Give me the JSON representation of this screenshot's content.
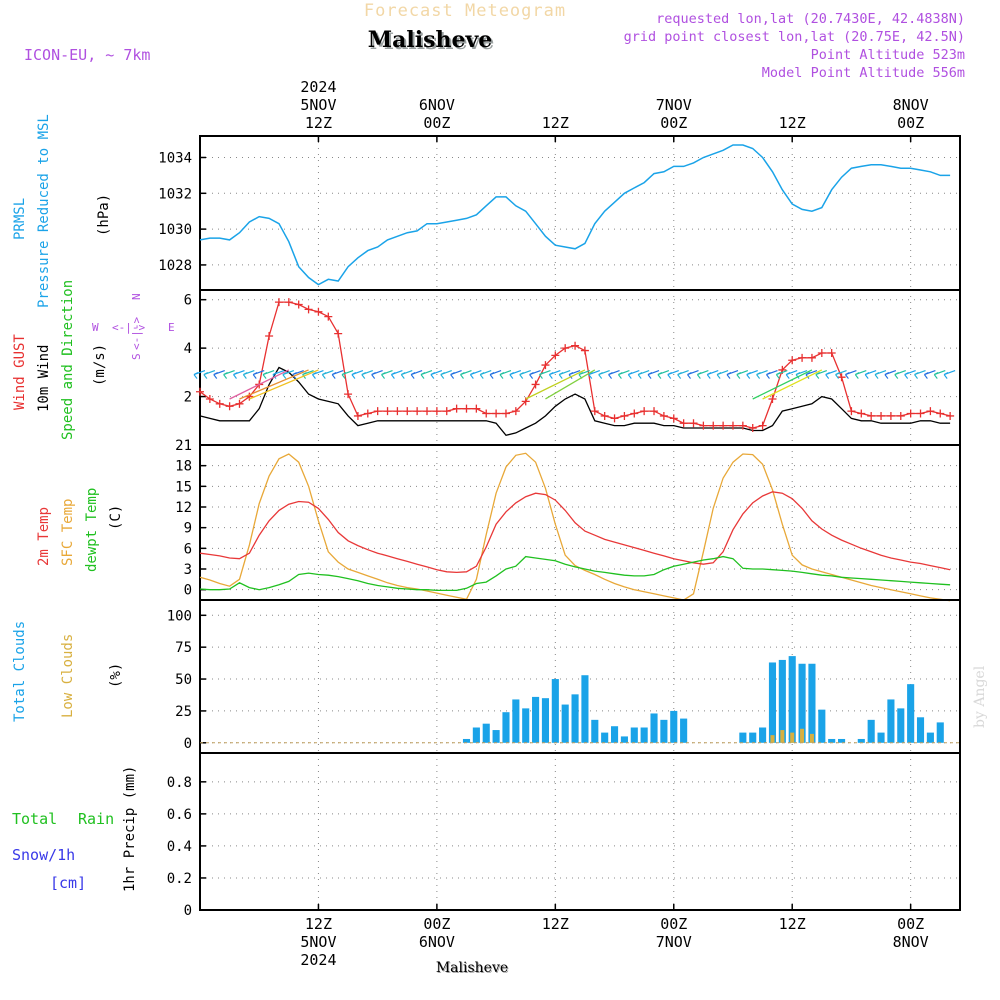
{
  "header": {
    "product": "Forecast Meteogram",
    "location": "Malisheve",
    "model": "ICON-EU, ~ 7km",
    "requested": "requested lon,lat (20.7430E, 42.4838N)",
    "gridpoint": "grid point closest lon,lat (20.75E, 42.5N)",
    "point_alt": "Point Altitude 523m",
    "model_alt": "Model Point Altitude 556m",
    "watermark": "by Angel",
    "footer": "Malisheve"
  },
  "colors": {
    "pressure": "#1aa3e8",
    "gust": "#e83030",
    "wind": "#000000",
    "temp": "#e83838",
    "sfc": "#e8a838",
    "dew": "#20c020",
    "clouds": "#1aa3e8",
    "low": "#d8b040",
    "rain": "#20c020",
    "snow": "#3838e8",
    "purple": "#b050e0"
  },
  "time_axis": {
    "top": [
      {
        "h": 12,
        "l1": "2024",
        "l2": "5NOV",
        "l3": "12Z"
      },
      {
        "h": 24,
        "l1": "",
        "l2": "6NOV",
        "l3": "00Z"
      },
      {
        "h": 36,
        "l1": "",
        "l2": "",
        "l3": "12Z"
      },
      {
        "h": 48,
        "l1": "",
        "l2": "7NOV",
        "l3": "00Z"
      },
      {
        "h": 60,
        "l1": "",
        "l2": "",
        "l3": "12Z"
      },
      {
        "h": 72,
        "l1": "",
        "l2": "8NOV",
        "l3": "00Z"
      }
    ],
    "bottom": [
      {
        "h": 12,
        "l1": "12Z",
        "l2": "5NOV",
        "l3": "2024"
      },
      {
        "h": 24,
        "l1": "00Z",
        "l2": "6NOV",
        "l3": ""
      },
      {
        "h": 36,
        "l1": "12Z",
        "l2": "",
        "l3": ""
      },
      {
        "h": 48,
        "l1": "00Z",
        "l2": "7NOV",
        "l3": ""
      },
      {
        "h": 60,
        "l1": "12Z",
        "l2": "",
        "l3": ""
      },
      {
        "h": 72,
        "l1": "00Z",
        "l2": "8NOV",
        "l3": ""
      }
    ]
  },
  "panel_labels": {
    "p1": {
      "a": "PRMSL",
      "b": "Pressure Reduced to MSL",
      "unit": "(hPa)"
    },
    "p2": {
      "a": "Wind GUST",
      "b": "10m Wind",
      "c": "Speed and Direction",
      "unit": "(m/s)",
      "n": "N",
      "s": "S",
      "w": "W",
      "e": "E",
      "arrows": "<-|->"
    },
    "p3": {
      "a": "2m Temp",
      "b": "SFC Temp",
      "c": "dewpt Temp",
      "unit": "(C)"
    },
    "p4": {
      "a": "Total Clouds",
      "b": "Low Clouds",
      "unit": "(%)"
    },
    "p5": {
      "a": "Total",
      "b": "Rain",
      "c": "Snow/1h",
      "d": "[cm]",
      "unit": "1hr Precip (mm)"
    }
  },
  "chart_data": [
    {
      "type": "line",
      "title": "Pressure Reduced to MSL",
      "ylabel": "(hPa)",
      "ylim": [
        1026.6,
        1035.2
      ],
      "yticks": [
        1028,
        1030,
        1032,
        1034
      ],
      "xlim": [
        0,
        77
      ],
      "x": [
        0,
        1,
        2,
        3,
        4,
        5,
        6,
        7,
        8,
        9,
        10,
        11,
        12,
        13,
        14,
        15,
        16,
        17,
        18,
        19,
        20,
        21,
        22,
        23,
        24,
        25,
        26,
        27,
        28,
        29,
        30,
        31,
        32,
        33,
        34,
        35,
        36,
        37,
        38,
        39,
        40,
        41,
        42,
        43,
        44,
        45,
        46,
        47,
        48,
        49,
        50,
        51,
        52,
        53,
        54,
        55,
        56,
        57,
        58,
        59,
        60,
        61,
        62,
        63,
        64,
        65,
        66,
        67,
        68,
        69,
        70,
        71,
        72,
        73,
        74,
        75,
        76
      ],
      "series": [
        {
          "name": "PRMSL",
          "values": [
            1029.4,
            1029.5,
            1029.5,
            1029.4,
            1029.8,
            1030.4,
            1030.7,
            1030.6,
            1030.3,
            1029.3,
            1027.9,
            1027.3,
            1026.9,
            1027.2,
            1027.1,
            1027.9,
            1028.4,
            1028.8,
            1029.0,
            1029.4,
            1029.6,
            1029.8,
            1029.9,
            1030.3,
            1030.3,
            1030.4,
            1030.5,
            1030.6,
            1030.8,
            1031.3,
            1031.8,
            1031.8,
            1031.3,
            1031.0,
            1030.3,
            1029.6,
            1029.1,
            1029.0,
            1028.9,
            1029.2,
            1030.3,
            1031.0,
            1031.5,
            1032.0,
            1032.3,
            1032.6,
            1033.1,
            1033.2,
            1033.5,
            1033.5,
            1033.7,
            1034.0,
            1034.2,
            1034.4,
            1034.7,
            1034.7,
            1034.5,
            1034.0,
            1033.2,
            1032.2,
            1031.4,
            1031.1,
            1031.0,
            1031.2,
            1032.2,
            1032.9,
            1033.4,
            1033.5,
            1033.6,
            1033.6,
            1033.5,
            1033.4,
            1033.4,
            1033.3,
            1033.2,
            1033.0,
            1033.0
          ]
        }
      ]
    },
    {
      "type": "line",
      "title": "Wind GUST / 10m Wind",
      "ylabel": "(m/s)",
      "ylim": [
        0,
        6.4
      ],
      "yticks": [
        2,
        4,
        6
      ],
      "xlim": [
        0,
        77
      ],
      "x": [
        0,
        1,
        2,
        3,
        4,
        5,
        6,
        7,
        8,
        9,
        10,
        11,
        12,
        13,
        14,
        15,
        16,
        17,
        18,
        19,
        20,
        21,
        22,
        23,
        24,
        25,
        26,
        27,
        28,
        29,
        30,
        31,
        32,
        33,
        34,
        35,
        36,
        37,
        38,
        39,
        40,
        41,
        42,
        43,
        44,
        45,
        46,
        47,
        48,
        49,
        50,
        51,
        52,
        53,
        54,
        55,
        56,
        57,
        58,
        59,
        60,
        61,
        62,
        63,
        64,
        65,
        66,
        67,
        68,
        69,
        70,
        71,
        72,
        73,
        74,
        75,
        76
      ],
      "series": [
        {
          "name": "Wind GUST",
          "values": [
            2.2,
            1.9,
            1.7,
            1.6,
            1.7,
            2.0,
            2.5,
            4.5,
            5.9,
            5.9,
            5.8,
            5.6,
            5.5,
            5.3,
            4.6,
            2.1,
            1.2,
            1.3,
            1.4,
            1.4,
            1.4,
            1.4,
            1.4,
            1.4,
            1.4,
            1.4,
            1.5,
            1.5,
            1.5,
            1.3,
            1.3,
            1.3,
            1.4,
            1.8,
            2.5,
            3.3,
            3.7,
            4.0,
            4.1,
            3.9,
            1.4,
            1.2,
            1.1,
            1.2,
            1.3,
            1.4,
            1.4,
            1.2,
            1.1,
            0.9,
            0.9,
            0.8,
            0.8,
            0.8,
            0.8,
            0.8,
            0.7,
            0.8,
            1.9,
            3.1,
            3.5,
            3.6,
            3.6,
            3.8,
            3.8,
            2.8,
            1.4,
            1.3,
            1.2,
            1.2,
            1.2,
            1.2,
            1.3,
            1.3,
            1.4,
            1.3,
            1.2
          ]
        },
        {
          "name": "10m Wind",
          "values": [
            1.2,
            1.1,
            1.0,
            1.0,
            1.0,
            1.0,
            1.5,
            2.5,
            3.2,
            3.0,
            2.6,
            2.1,
            1.9,
            1.8,
            1.7,
            1.2,
            0.8,
            0.9,
            1.0,
            1.0,
            1.0,
            1.0,
            1.0,
            1.0,
            1.0,
            1.0,
            1.0,
            1.0,
            1.0,
            1.0,
            0.9,
            0.4,
            0.5,
            0.7,
            0.9,
            1.2,
            1.6,
            1.9,
            2.1,
            1.9,
            1.0,
            0.9,
            0.8,
            0.8,
            0.9,
            0.9,
            0.9,
            0.8,
            0.8,
            0.7,
            0.7,
            0.7,
            0.7,
            0.7,
            0.7,
            0.7,
            0.6,
            0.6,
            0.8,
            1.4,
            1.5,
            1.6,
            1.7,
            2.0,
            1.9,
            1.5,
            1.1,
            1.0,
            1.0,
            0.9,
            0.9,
            0.9,
            0.9,
            1.0,
            1.0,
            0.9,
            0.9
          ]
        }
      ]
    },
    {
      "type": "line",
      "title": "2m Temp / SFC Temp / dewpt Temp",
      "ylabel": "(C)",
      "ylim": [
        -1.5,
        21
      ],
      "yticks": [
        0,
        3,
        6,
        9,
        12,
        15,
        18,
        21
      ],
      "xlim": [
        0,
        77
      ],
      "x": [
        0,
        1,
        2,
        3,
        4,
        5,
        6,
        7,
        8,
        9,
        10,
        11,
        12,
        13,
        14,
        15,
        16,
        17,
        18,
        19,
        20,
        21,
        22,
        23,
        24,
        25,
        26,
        27,
        28,
        29,
        30,
        31,
        32,
        33,
        34,
        35,
        36,
        37,
        38,
        39,
        40,
        41,
        42,
        43,
        44,
        45,
        46,
        47,
        48,
        49,
        50,
        51,
        52,
        53,
        54,
        55,
        56,
        57,
        58,
        59,
        60,
        61,
        62,
        63,
        64,
        65,
        66,
        67,
        68,
        69,
        70,
        71,
        72,
        73,
        74,
        75,
        76
      ],
      "series": [
        {
          "name": "2m Temp",
          "values": [
            5.3,
            5.1,
            4.9,
            4.6,
            4.5,
            5.3,
            7.9,
            10.0,
            11.5,
            12.4,
            12.8,
            12.7,
            11.8,
            10.2,
            8.3,
            7.1,
            6.4,
            5.8,
            5.3,
            4.9,
            4.5,
            4.1,
            3.7,
            3.3,
            2.9,
            2.6,
            2.5,
            2.6,
            3.4,
            6.2,
            9.5,
            11.3,
            12.6,
            13.5,
            14.0,
            13.8,
            13.0,
            11.5,
            9.7,
            8.5,
            7.9,
            7.3,
            6.9,
            6.5,
            6.1,
            5.7,
            5.3,
            4.9,
            4.5,
            4.2,
            3.9,
            3.7,
            3.9,
            5.5,
            8.7,
            11.0,
            12.6,
            13.6,
            14.2,
            14.0,
            13.2,
            11.8,
            10.0,
            8.8,
            7.9,
            7.2,
            6.6,
            6.0,
            5.5,
            5.0,
            4.6,
            4.3,
            4.0,
            3.8,
            3.5,
            3.2,
            2.9
          ]
        },
        {
          "name": "SFC Temp",
          "values": [
            1.8,
            1.4,
            0.9,
            0.5,
            1.5,
            6.5,
            12.5,
            16.5,
            19.0,
            19.7,
            18.5,
            15.0,
            10.0,
            5.5,
            4.0,
            3.0,
            2.5,
            2.0,
            1.5,
            1.0,
            0.6,
            0.3,
            0.1,
            -0.2,
            -0.5,
            -0.8,
            -1.1,
            -1.4,
            1.5,
            8.0,
            14.0,
            17.8,
            19.5,
            19.8,
            18.5,
            14.7,
            9.5,
            5.0,
            3.5,
            2.8,
            2.2,
            1.5,
            0.9,
            0.4,
            0.0,
            -0.3,
            -0.6,
            -0.9,
            -1.2,
            -1.5,
            -0.6,
            5.5,
            11.8,
            16.2,
            18.5,
            19.7,
            19.6,
            18.2,
            14.5,
            9.5,
            5.0,
            3.6,
            3.0,
            2.6,
            2.2,
            1.8,
            1.4,
            1.0,
            0.6,
            0.3,
            0.0,
            -0.3,
            -0.6,
            -0.9,
            -1.2,
            -1.4,
            -1.6
          ]
        },
        {
          "name": "dewpt Temp",
          "values": [
            0.1,
            0.0,
            0.0,
            0.1,
            1.0,
            0.3,
            0.0,
            0.3,
            0.7,
            1.2,
            2.2,
            2.4,
            2.2,
            2.1,
            1.9,
            1.6,
            1.3,
            0.9,
            0.6,
            0.4,
            0.2,
            0.1,
            0.0,
            0.0,
            -0.1,
            -0.1,
            -0.1,
            0.2,
            0.9,
            1.1,
            2.0,
            3.0,
            3.4,
            4.8,
            4.6,
            4.4,
            4.2,
            3.7,
            3.3,
            3.0,
            2.7,
            2.5,
            2.3,
            2.1,
            2.0,
            2.0,
            2.2,
            2.9,
            3.4,
            3.7,
            4.0,
            4.3,
            4.5,
            4.8,
            4.5,
            3.1,
            3.0,
            3.0,
            2.9,
            2.8,
            2.7,
            2.5,
            2.3,
            2.1,
            2.0,
            1.8,
            1.7,
            1.6,
            1.5,
            1.4,
            1.3,
            1.2,
            1.1,
            1.0,
            0.9,
            0.8,
            0.7
          ]
        }
      ]
    },
    {
      "type": "bar",
      "title": "Total Clouds / Low Clouds",
      "ylabel": "(%)",
      "ylim": [
        -8,
        112
      ],
      "yticks": [
        0,
        25,
        50,
        75,
        100
      ],
      "xlim": [
        0,
        77
      ],
      "x": [
        0,
        1,
        2,
        3,
        4,
        5,
        6,
        7,
        8,
        9,
        10,
        11,
        12,
        13,
        14,
        15,
        16,
        17,
        18,
        19,
        20,
        21,
        22,
        23,
        24,
        25,
        26,
        27,
        28,
        29,
        30,
        31,
        32,
        33,
        34,
        35,
        36,
        37,
        38,
        39,
        40,
        41,
        42,
        43,
        44,
        45,
        46,
        47,
        48,
        49,
        50,
        51,
        52,
        53,
        54,
        55,
        56,
        57,
        58,
        59,
        60,
        61,
        62,
        63,
        64,
        65,
        66,
        67,
        68,
        69,
        70,
        71,
        72,
        73,
        74,
        75,
        76
      ],
      "series": [
        {
          "name": "Total Clouds",
          "values": [
            0,
            0,
            0,
            0,
            0,
            0,
            0,
            0,
            0,
            0,
            0,
            0,
            0,
            0,
            0,
            0,
            0,
            0,
            0,
            0,
            0,
            0,
            0,
            0,
            0,
            0,
            0,
            3,
            12,
            15,
            10,
            24,
            34,
            27,
            36,
            35,
            50,
            30,
            38,
            53,
            18,
            8,
            13,
            5,
            12,
            12,
            23,
            18,
            25,
            19,
            0,
            0,
            0,
            0,
            0,
            8,
            8,
            12,
            63,
            65,
            68,
            62,
            62,
            26,
            3,
            3,
            0,
            3,
            18,
            8,
            34,
            27,
            46,
            20,
            8,
            16,
            0
          ]
        },
        {
          "name": "Low Clouds",
          "values": [
            0,
            0,
            0,
            0,
            0,
            0,
            0,
            0,
            0,
            0,
            0,
            0,
            0,
            0,
            0,
            0,
            0,
            0,
            0,
            0,
            0,
            0,
            0,
            0,
            0,
            0,
            0,
            0,
            0,
            0,
            0,
            0,
            0,
            0,
            0,
            0,
            0,
            0,
            0,
            0,
            0,
            0,
            0,
            0,
            0,
            0,
            0,
            0,
            0,
            0,
            0,
            0,
            0,
            0,
            0,
            0,
            0,
            0,
            6,
            10,
            8,
            11,
            7,
            0,
            0,
            0,
            0,
            0,
            0,
            0,
            0,
            0,
            0,
            0,
            0,
            0,
            0
          ]
        }
      ]
    },
    {
      "type": "bar",
      "title": "1hr Precip",
      "ylabel": "1hr Precip (mm)",
      "ylim": [
        0,
        0.98
      ],
      "yticks": [
        0,
        0.2,
        0.4,
        0.6,
        0.8
      ],
      "xlim": [
        0,
        77
      ],
      "series": [
        {
          "name": "Total Rain",
          "values": []
        },
        {
          "name": "Snow/1h",
          "values": []
        }
      ]
    }
  ]
}
